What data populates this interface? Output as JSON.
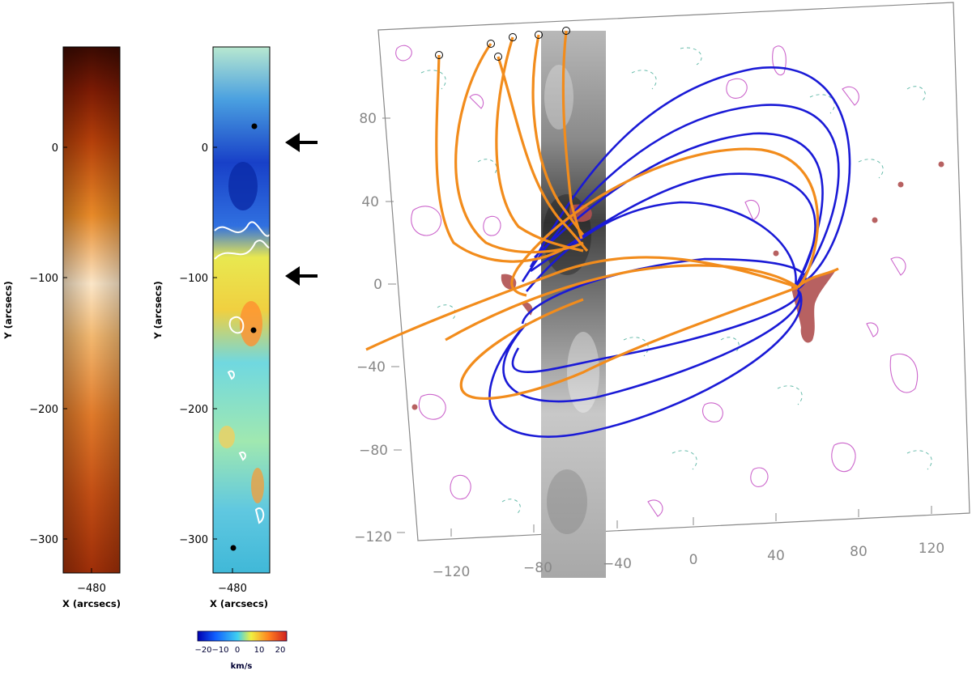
{
  "panel_left": {
    "y_ticks": [
      "0",
      "−100",
      "−200",
      "−300"
    ],
    "x_tick": "−480",
    "xlabel": "X (arcsecs)",
    "ylabel": "Y (arcsecs)"
  },
  "panel_middle": {
    "y_ticks": [
      "0",
      "−100",
      "−200",
      "−300"
    ],
    "x_tick": "−480",
    "xlabel": "X (arcsecs)",
    "ylabel": "Y (arcsecs)",
    "colorbar": {
      "ticks": [
        "−20",
        "−10",
        "0",
        "10",
        "20"
      ],
      "unit": "km/s",
      "colors": [
        "#0000b0",
        "#1060ff",
        "#40d0f0",
        "#f0f040",
        "#ff8020",
        "#d02020"
      ]
    }
  },
  "panel_right": {
    "x_ticks": [
      "−120",
      "−80",
      "−40",
      "0",
      "40",
      "80",
      "120"
    ],
    "y_ticks": [
      "80",
      "40",
      "0",
      "−40",
      "−80",
      "−120"
    ],
    "loop_colors": {
      "open": "#f28c1c",
      "closed": "#1a1ad6"
    },
    "contour_colors": {
      "positive": "#cc66cc",
      "negative": "#66bbaa",
      "source": "#b05050"
    }
  }
}
